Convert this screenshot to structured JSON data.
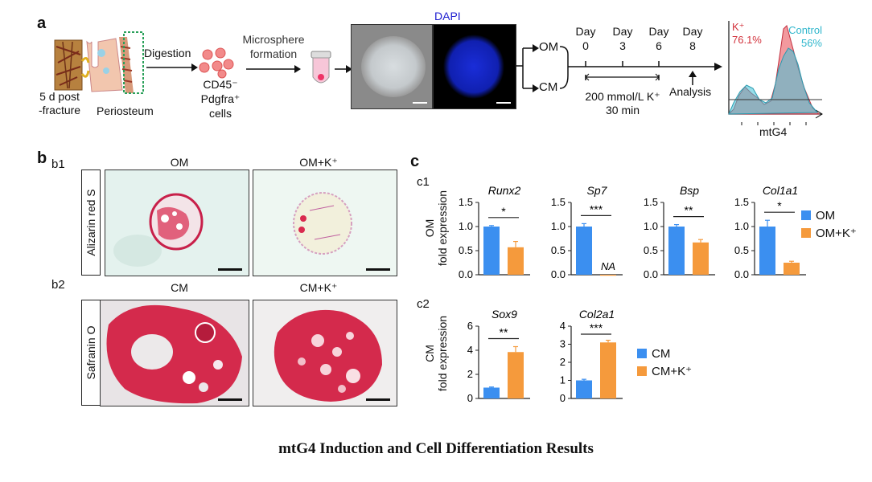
{
  "panel_a": {
    "letter": "a",
    "time_text": [
      "5 d post",
      "-fracture"
    ],
    "periosteum": "Periosteum",
    "digestion": "Digestion",
    "cells": [
      "CD45⁻",
      "Pdgfra⁺ cells"
    ],
    "microsphere": [
      "Microsphere",
      "formation"
    ],
    "dapi": "DAPI",
    "om": "OM",
    "cm": "CM",
    "days": [
      {
        "label": "Day",
        "num": "0"
      },
      {
        "label": "Day",
        "num": "3"
      },
      {
        "label": "Day",
        "num": "6"
      },
      {
        "label": "Day",
        "num": "8"
      }
    ],
    "treatment": [
      "200 mmol/L K⁺",
      "30 min"
    ],
    "analysis": "Analysis",
    "flow": {
      "k_label": "K⁺",
      "k_pct": "76.1%",
      "ctrl_label": "Control",
      "ctrl_pct": "56%",
      "xlabel": "mtG4"
    }
  },
  "panel_b": {
    "letter": "b",
    "b1": "b1",
    "b2": "b2",
    "om": "OM",
    "om_k": "OM+K⁺",
    "cm": "CM",
    "cm_k": "CM+K⁺",
    "stain1": "Alizarin red S",
    "stain2": "Safranin O"
  },
  "panel_c": {
    "letter": "c",
    "c1": "c1",
    "c2": "c2",
    "c1_ylabel": [
      "OM",
      "fold expression"
    ],
    "c2_ylabel": [
      "CM",
      "fold expression"
    ],
    "legend_c1": [
      {
        "name": "OM",
        "color": "#3b8ff0"
      },
      {
        "name": "OM+K⁺",
        "color": "#f59a3c"
      }
    ],
    "legend_c2": [
      {
        "name": "CM",
        "color": "#3b8ff0"
      },
      {
        "name": "CM+K⁺",
        "color": "#f59a3c"
      }
    ]
  },
  "chart_data": [
    {
      "type": "bar",
      "title": "Runx2",
      "categories": [
        "OM",
        "OM+K⁺"
      ],
      "values": [
        1.0,
        0.57
      ],
      "errors": [
        0.02,
        0.12
      ],
      "ylim": [
        0,
        1.5
      ],
      "yticks": [
        "0.0",
        "0.5",
        "1.0",
        "1.5"
      ],
      "significance": "*"
    },
    {
      "type": "bar",
      "title": "Sp7",
      "categories": [
        "OM",
        "OM+K⁺"
      ],
      "values": [
        1.0,
        0.0
      ],
      "errors": [
        0.06,
        0.0
      ],
      "ylim": [
        0,
        1.5
      ],
      "yticks": [
        "0.0",
        "0.5",
        "1.0",
        "1.5"
      ],
      "significance": "***",
      "annotation": "NA"
    },
    {
      "type": "bar",
      "title": "Bsp",
      "categories": [
        "OM",
        "OM+K⁺"
      ],
      "values": [
        1.0,
        0.67
      ],
      "errors": [
        0.04,
        0.06
      ],
      "ylim": [
        0,
        1.5
      ],
      "yticks": [
        "0.0",
        "0.5",
        "1.0",
        "1.5"
      ],
      "significance": "**"
    },
    {
      "type": "bar",
      "title": "Col1a1",
      "categories": [
        "OM",
        "OM+K⁺"
      ],
      "values": [
        1.0,
        0.25
      ],
      "errors": [
        0.13,
        0.03
      ],
      "ylim": [
        0,
        1.5
      ],
      "yticks": [
        "0.0",
        "0.5",
        "1.0",
        "1.5"
      ],
      "significance": "*"
    },
    {
      "type": "bar",
      "title": "Sox9",
      "categories": [
        "CM",
        "CM+K⁺"
      ],
      "values": [
        0.9,
        3.85
      ],
      "errors": [
        0.05,
        0.45
      ],
      "ylim": [
        0,
        6
      ],
      "yticks": [
        "0",
        "2",
        "4",
        "6"
      ],
      "significance": "**"
    },
    {
      "type": "bar",
      "title": "Col2a1",
      "categories": [
        "CM",
        "CM+K⁺"
      ],
      "values": [
        1.0,
        3.1
      ],
      "errors": [
        0.06,
        0.12
      ],
      "ylim": [
        0,
        4
      ],
      "yticks": [
        "0",
        "1",
        "2",
        "3",
        "4"
      ],
      "significance": "***"
    }
  ],
  "colors": {
    "blue": "#3b8ff0",
    "orange": "#f59a3c",
    "flow_red": "#e8464f",
    "flow_cyan": "#3fc3d8"
  },
  "caption": "mtG4 Induction and Cell Differentiation Results"
}
